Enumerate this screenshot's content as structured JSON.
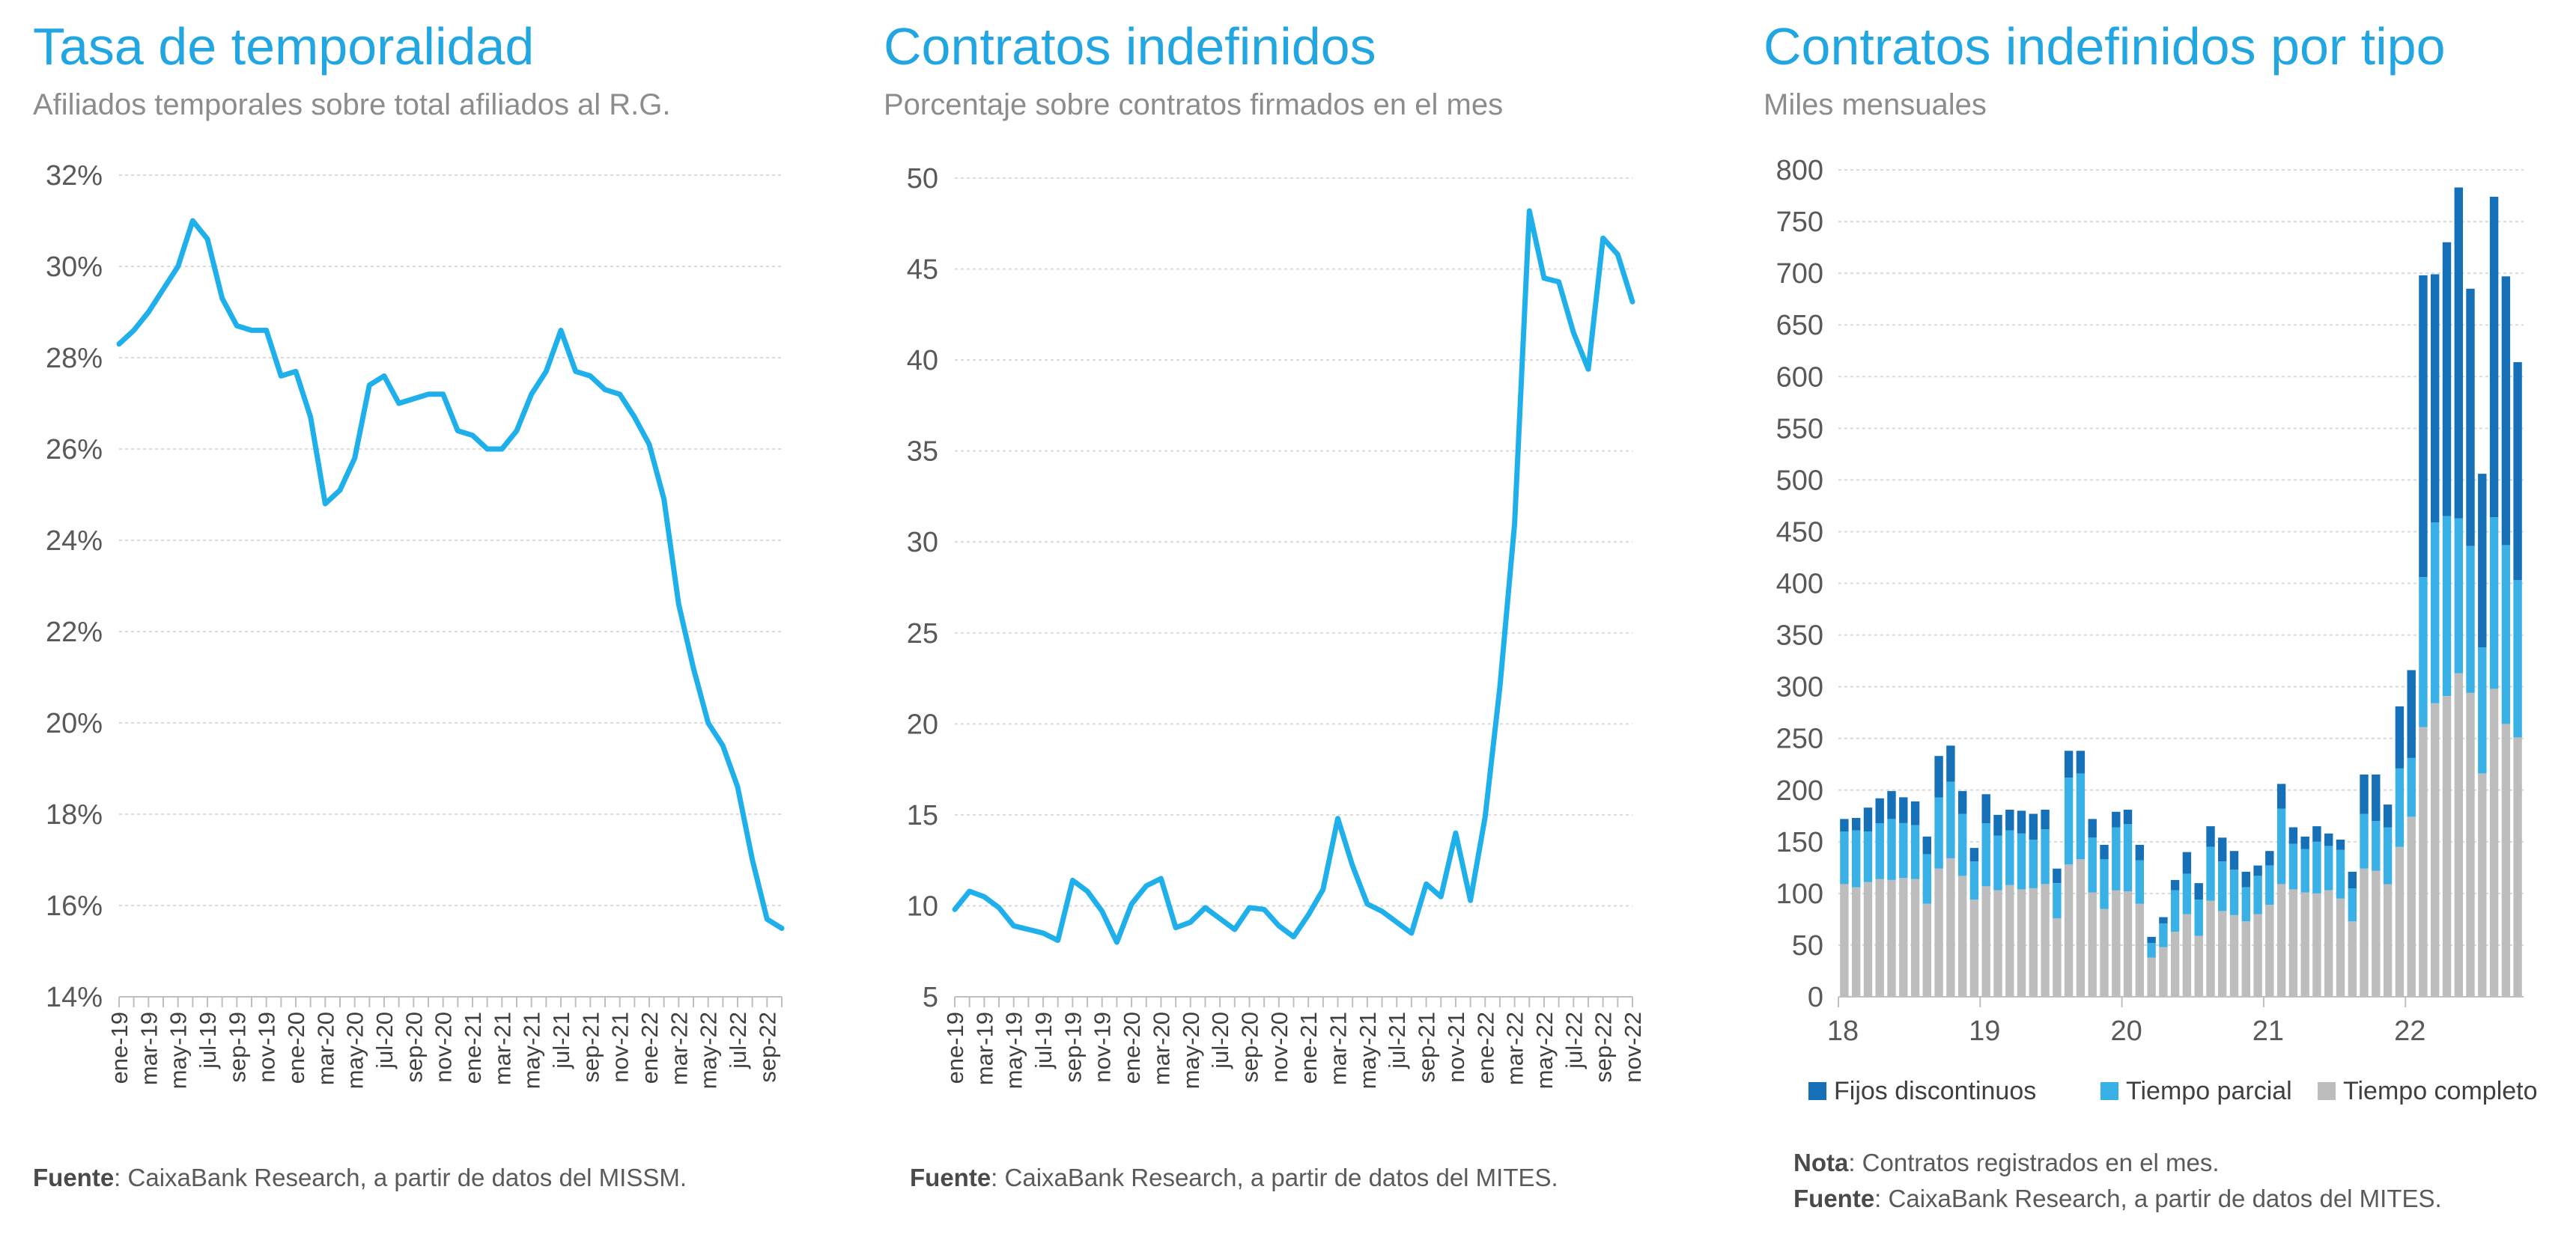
{
  "panels": [
    {
      "title": "Tasa de temporalidad",
      "subtitle": "Afiliados temporales sobre total afiliados al R.G.",
      "note_label": "",
      "note": "",
      "source_label": "Fuente",
      "source": ": CaixaBank Research, a partir de datos del MISSM."
    },
    {
      "title": "Contratos indefinidos",
      "subtitle": "Porcentaje sobre contratos firmados en el mes",
      "note_label": "",
      "note": "",
      "source_label": "Fuente",
      "source": ": CaixaBank Research, a partir de datos del MITES."
    },
    {
      "title": "Contratos indefinidos por tipo",
      "subtitle": "Miles mensuales",
      "note_label": "Nota",
      "note": ": Contratos registrados en el mes.",
      "source_label": "Fuente",
      "source": ": CaixaBank Research, a partir de datos del MITES."
    }
  ],
  "colors": {
    "accent": "#22a6e2",
    "line": "#1fb0ec",
    "fijos": "#1670b8",
    "parcial": "#3ab1e6",
    "completo": "#bdbdbd",
    "grid": "#d9d9d9"
  },
  "chart_data": [
    {
      "type": "line",
      "title": "Tasa de temporalidad",
      "ylim": [
        14,
        32
      ],
      "yticks": [
        "32%",
        "30%",
        "28%",
        "26%",
        "24%",
        "22%",
        "20%",
        "18%",
        "16%",
        "14%"
      ],
      "xticks": [
        "ene-19",
        "mar-19",
        "may-19",
        "jul-19",
        "sep-19",
        "nov-19",
        "ene-20",
        "mar-20",
        "may-20",
        "jul-20",
        "sep-20",
        "nov-20",
        "ene-21",
        "mar-21",
        "may-21",
        "jul-21",
        "sep-21",
        "nov-21",
        "ene-22",
        "mar-22",
        "may-22",
        "jul-22",
        "sep-22"
      ],
      "grid": true,
      "series": [
        {
          "values": [
            28.3,
            28.6,
            29.0,
            29.5,
            30.0,
            31.0,
            30.6,
            29.3,
            28.7,
            28.6,
            28.6,
            27.6,
            27.7,
            26.7,
            24.8,
            25.1,
            25.8,
            27.4,
            27.6,
            27.0,
            27.1,
            27.2,
            27.2,
            26.4,
            26.3,
            26.0,
            26.0,
            26.4,
            27.2,
            27.7,
            28.6,
            27.7,
            27.6,
            27.3,
            27.2,
            26.7,
            26.1,
            24.9,
            22.6,
            21.2,
            20.0,
            19.5,
            18.6,
            17.0,
            15.7,
            15.5
          ]
        }
      ]
    },
    {
      "type": "line",
      "title": "Contratos indefinidos",
      "ylim": [
        5,
        50
      ],
      "yticks": [
        "50",
        "45",
        "40",
        "35",
        "30",
        "25",
        "20",
        "15",
        "10",
        "5"
      ],
      "xticks": [
        "ene-19",
        "mar-19",
        "may-19",
        "jul-19",
        "sep-19",
        "nov-19",
        "ene-20",
        "mar-20",
        "may-20",
        "jul-20",
        "sep-20",
        "nov-20",
        "ene-21",
        "mar-21",
        "may-21",
        "jul-21",
        "sep-21",
        "nov-21",
        "ene-22",
        "mar-22",
        "may-22",
        "jul-22",
        "sep-22",
        "nov-22"
      ],
      "grid": true,
      "series": [
        {
          "values": [
            9.8,
            10.8,
            10.5,
            9.9,
            8.9,
            8.7,
            8.5,
            8.1,
            11.4,
            10.8,
            9.7,
            8.0,
            10.1,
            11.1,
            11.5,
            8.8,
            9.1,
            9.9,
            9.3,
            8.7,
            9.9,
            9.8,
            8.9,
            8.3,
            9.5,
            10.9,
            14.8,
            12.2,
            10.1,
            9.7,
            9.1,
            8.5,
            11.2,
            10.5,
            14.0,
            10.3,
            14.9,
            22.0,
            31.0,
            48.2,
            44.5,
            44.3,
            41.5,
            39.5,
            46.7,
            45.8,
            43.2
          ]
        }
      ]
    },
    {
      "type": "bar",
      "stacked": true,
      "title": "Contratos indefinidos por tipo",
      "ylim": [
        0,
        800
      ],
      "yticks": [
        "800",
        "750",
        "700",
        "650",
        "600",
        "550",
        "500",
        "450",
        "400",
        "350",
        "300",
        "250",
        "200",
        "150",
        "100",
        "50",
        "0"
      ],
      "xticks": [
        "18",
        "19",
        "20",
        "21",
        "22"
      ],
      "legend": "bottom",
      "grid": true,
      "series": [
        {
          "name": "Tiempo completo",
          "values": [
            109,
            106,
            111,
            114,
            113,
            115,
            114,
            90,
            124,
            134,
            117,
            94,
            107,
            103,
            108,
            104,
            105,
            109,
            76,
            128,
            133,
            101,
            85,
            103,
            102,
            90,
            38,
            48,
            63,
            80,
            59,
            93,
            83,
            79,
            73,
            80,
            89,
            109,
            104,
            101,
            100,
            103,
            95,
            73,
            124,
            122,
            109,
            145,
            174,
            261,
            284,
            291,
            313,
            294,
            216,
            298,
            264,
            251
          ]
        },
        {
          "name": "Tiempo parcial",
          "values": [
            51,
            55,
            49,
            54,
            59,
            53,
            52,
            48,
            69,
            74,
            60,
            37,
            61,
            53,
            53,
            54,
            47,
            53,
            34,
            84,
            83,
            53,
            48,
            61,
            65,
            42,
            14,
            23,
            40,
            39,
            35,
            52,
            48,
            44,
            33,
            37,
            38,
            73,
            44,
            42,
            50,
            43,
            47,
            32,
            53,
            48,
            55,
            76,
            57,
            145,
            175,
            174,
            150,
            142,
            122,
            166,
            173,
            152
          ]
        },
        {
          "name": "Fijos discontinuos",
          "values": [
            12,
            12,
            23,
            24,
            27,
            25,
            23,
            17,
            40,
            35,
            22,
            13,
            28,
            20,
            20,
            22,
            25,
            19,
            14,
            26,
            22,
            18,
            14,
            15,
            14,
            15,
            6,
            6,
            10,
            21,
            16,
            20,
            23,
            18,
            15,
            10,
            14,
            24,
            16,
            12,
            15,
            12,
            10,
            16,
            38,
            45,
            22,
            60,
            85,
            292,
            240,
            265,
            320,
            249,
            168,
            310,
            260,
            211
          ]
        }
      ]
    }
  ]
}
